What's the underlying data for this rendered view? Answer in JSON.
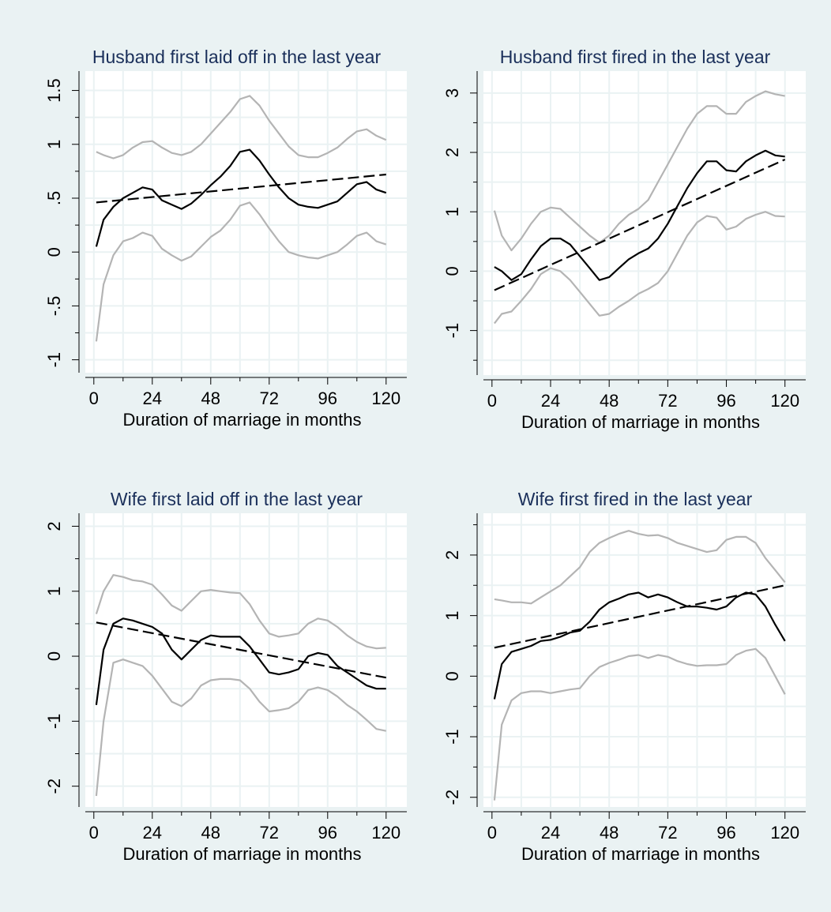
{
  "chart_data": [
    {
      "type": "line",
      "title": "Husband first laid off in the last year",
      "xlabel": "Duration of marriage in months",
      "x": [
        1,
        4,
        8,
        12,
        16,
        20,
        24,
        28,
        32,
        36,
        40,
        44,
        48,
        52,
        56,
        60,
        64,
        68,
        72,
        76,
        80,
        84,
        88,
        92,
        96,
        100,
        104,
        108,
        112,
        116,
        120
      ],
      "xlim": [
        -3.5,
        128.5
      ],
      "xticks": [
        0,
        24,
        48,
        72,
        96,
        120
      ],
      "xminorticks": [
        12,
        36,
        60,
        84,
        108
      ],
      "ylim": [
        -1.12,
        1.68
      ],
      "yticks": [
        -1,
        {
          "value": -0.5,
          "label": "-.5"
        },
        0,
        {
          "value": 0.5,
          "label": ".5"
        },
        1,
        1.5
      ],
      "yminorticks": [
        -0.75,
        -0.25,
        0.25,
        0.75,
        1.25
      ],
      "grid": true,
      "series": [
        {
          "color": "#b4b4b4",
          "values": [
            0.93,
            0.9,
            0.87,
            0.9,
            0.97,
            1.02,
            1.03,
            0.97,
            0.92,
            0.9,
            0.93,
            1.0,
            1.1,
            1.2,
            1.3,
            1.42,
            1.45,
            1.36,
            1.22,
            1.1,
            0.98,
            0.9,
            0.88,
            0.88,
            0.92,
            0.97,
            1.05,
            1.12,
            1.14,
            1.08,
            1.04
          ]
        },
        {
          "color": "#b4b4b4",
          "values": [
            -0.83,
            -0.3,
            -0.03,
            0.1,
            0.13,
            0.18,
            0.15,
            0.03,
            -0.03,
            -0.08,
            -0.04,
            0.05,
            0.14,
            0.2,
            0.3,
            0.43,
            0.46,
            0.35,
            0.22,
            0.1,
            0.0,
            -0.03,
            -0.05,
            -0.06,
            -0.03,
            0.0,
            0.07,
            0.15,
            0.18,
            0.1,
            0.07
          ]
        },
        {
          "color": "#000000",
          "values": [
            0.05,
            0.3,
            0.42,
            0.5,
            0.55,
            0.6,
            0.58,
            0.48,
            0.44,
            0.4,
            0.45,
            0.53,
            0.62,
            0.7,
            0.8,
            0.93,
            0.95,
            0.85,
            0.72,
            0.6,
            0.5,
            0.44,
            0.42,
            0.41,
            0.44,
            0.47,
            0.55,
            0.63,
            0.65,
            0.58,
            0.55
          ]
        },
        {
          "color": "#000000",
          "dash": true,
          "x": [
            1,
            120
          ],
          "values": [
            0.46,
            0.72
          ]
        }
      ]
    },
    {
      "type": "line",
      "title": "Husband first fired in the last year",
      "xlabel": "Duration of marriage in months",
      "x": [
        1,
        4,
        8,
        12,
        16,
        20,
        24,
        28,
        32,
        36,
        40,
        44,
        48,
        52,
        56,
        60,
        64,
        68,
        72,
        76,
        80,
        84,
        88,
        92,
        96,
        100,
        104,
        108,
        112,
        116,
        120
      ],
      "xlim": [
        -3.5,
        128.5
      ],
      "xticks": [
        0,
        24,
        48,
        72,
        96,
        120
      ],
      "xminorticks": [
        12,
        36,
        60,
        84,
        108
      ],
      "ylim": [
        -1.75,
        3.37
      ],
      "yticks": [
        -1,
        0,
        1,
        2,
        3
      ],
      "yminorticks": [
        -1.5,
        -0.5,
        0.5,
        1.5,
        2.5
      ],
      "grid": true,
      "series": [
        {
          "color": "#b4b4b4",
          "values": [
            1.02,
            0.6,
            0.35,
            0.55,
            0.8,
            1.0,
            1.07,
            1.05,
            0.9,
            0.75,
            0.6,
            0.48,
            0.6,
            0.8,
            0.95,
            1.05,
            1.2,
            1.5,
            1.8,
            2.1,
            2.4,
            2.65,
            2.78,
            2.78,
            2.65,
            2.65,
            2.85,
            2.95,
            3.03,
            2.98,
            2.95
          ]
        },
        {
          "color": "#b4b4b4",
          "values": [
            -0.88,
            -0.72,
            -0.68,
            -0.5,
            -0.3,
            -0.05,
            0.05,
            0.0,
            -0.15,
            -0.35,
            -0.55,
            -0.75,
            -0.72,
            -0.6,
            -0.5,
            -0.38,
            -0.3,
            -0.2,
            0.0,
            0.3,
            0.6,
            0.82,
            0.93,
            0.9,
            0.7,
            0.75,
            0.88,
            0.95,
            1.0,
            0.93,
            0.92
          ]
        },
        {
          "color": "#000000",
          "values": [
            0.07,
            0.0,
            -0.15,
            -0.05,
            0.2,
            0.42,
            0.55,
            0.55,
            0.45,
            0.25,
            0.05,
            -0.15,
            -0.1,
            0.05,
            0.2,
            0.3,
            0.38,
            0.55,
            0.8,
            1.1,
            1.4,
            1.65,
            1.85,
            1.85,
            1.7,
            1.68,
            1.85,
            1.95,
            2.03,
            1.95,
            1.93
          ]
        },
        {
          "color": "#000000",
          "dash": true,
          "x": [
            1,
            120
          ],
          "values": [
            -0.32,
            1.88
          ]
        }
      ]
    },
    {
      "type": "line",
      "title": "Wife first laid off in the last year",
      "xlabel": "Duration of marriage in months",
      "x": [
        1,
        4,
        8,
        12,
        16,
        20,
        24,
        28,
        32,
        36,
        40,
        44,
        48,
        52,
        56,
        60,
        64,
        68,
        72,
        76,
        80,
        84,
        88,
        92,
        96,
        100,
        104,
        108,
        112,
        116,
        120
      ],
      "xlim": [
        -3.5,
        128.5
      ],
      "xticks": [
        0,
        24,
        48,
        72,
        96,
        120
      ],
      "xminorticks": [
        12,
        36,
        60,
        84,
        108
      ],
      "ylim": [
        -2.32,
        2.2
      ],
      "yticks": [
        -2,
        -1,
        0,
        1,
        2
      ],
      "yminorticks": [
        -1.5,
        -0.5,
        0.5,
        1.5
      ],
      "grid": true,
      "series": [
        {
          "color": "#b4b4b4",
          "values": [
            0.65,
            1.0,
            1.25,
            1.22,
            1.17,
            1.15,
            1.1,
            0.95,
            0.78,
            0.7,
            0.85,
            1.0,
            1.02,
            1.0,
            0.98,
            0.97,
            0.8,
            0.55,
            0.35,
            0.3,
            0.32,
            0.35,
            0.5,
            0.58,
            0.55,
            0.45,
            0.32,
            0.22,
            0.15,
            0.12,
            0.13
          ]
        },
        {
          "color": "#b4b4b4",
          "values": [
            -2.15,
            -1.0,
            -0.1,
            -0.05,
            -0.1,
            -0.15,
            -0.3,
            -0.5,
            -0.7,
            -0.77,
            -0.65,
            -0.45,
            -0.37,
            -0.35,
            -0.35,
            -0.37,
            -0.5,
            -0.7,
            -0.85,
            -0.83,
            -0.8,
            -0.7,
            -0.52,
            -0.48,
            -0.52,
            -0.62,
            -0.75,
            -0.85,
            -0.98,
            -1.12,
            -1.15
          ]
        },
        {
          "color": "#000000",
          "values": [
            -0.75,
            0.1,
            0.5,
            0.58,
            0.55,
            0.5,
            0.45,
            0.35,
            0.1,
            -0.05,
            0.1,
            0.25,
            0.32,
            0.3,
            0.3,
            0.3,
            0.15,
            -0.05,
            -0.25,
            -0.28,
            -0.25,
            -0.2,
            0.0,
            0.05,
            0.02,
            -0.15,
            -0.25,
            -0.35,
            -0.45,
            -0.5,
            -0.5
          ]
        },
        {
          "color": "#000000",
          "dash": true,
          "x": [
            1,
            120
          ],
          "values": [
            0.52,
            -0.33
          ]
        }
      ]
    },
    {
      "type": "line",
      "title": "Wife first fired in the last year",
      "xlabel": "Duration of marriage in months",
      "x": [
        1,
        4,
        8,
        12,
        16,
        20,
        24,
        28,
        32,
        36,
        40,
        44,
        48,
        52,
        56,
        60,
        64,
        68,
        72,
        76,
        80,
        84,
        88,
        92,
        96,
        100,
        104,
        108,
        112,
        116,
        120
      ],
      "xlim": [
        -3.5,
        128.5
      ],
      "xticks": [
        0,
        24,
        48,
        72,
        96,
        120
      ],
      "xminorticks": [
        12,
        36,
        60,
        84,
        108
      ],
      "ylim": [
        -2.16,
        2.69
      ],
      "yticks": [
        -2,
        -1,
        0,
        1,
        2
      ],
      "yminorticks": [
        -1.5,
        -0.5,
        0.5,
        1.5,
        2.5
      ],
      "grid": true,
      "series": [
        {
          "color": "#b4b4b4",
          "values": [
            1.27,
            1.25,
            1.22,
            1.22,
            1.2,
            1.3,
            1.4,
            1.5,
            1.65,
            1.8,
            2.05,
            2.2,
            2.28,
            2.35,
            2.4,
            2.35,
            2.32,
            2.33,
            2.28,
            2.2,
            2.15,
            2.1,
            2.05,
            2.08,
            2.25,
            2.3,
            2.3,
            2.2,
            1.95,
            1.75,
            1.55
          ]
        },
        {
          "color": "#b4b4b4",
          "values": [
            -2.05,
            -0.8,
            -0.4,
            -0.28,
            -0.25,
            -0.25,
            -0.28,
            -0.25,
            -0.22,
            -0.2,
            0.0,
            0.15,
            0.22,
            0.27,
            0.33,
            0.35,
            0.3,
            0.35,
            0.32,
            0.25,
            0.2,
            0.17,
            0.18,
            0.18,
            0.2,
            0.35,
            0.42,
            0.45,
            0.3,
            0.0,
            -0.3
          ]
        },
        {
          "color": "#000000",
          "values": [
            -0.38,
            0.2,
            0.4,
            0.45,
            0.5,
            0.58,
            0.6,
            0.65,
            0.72,
            0.75,
            0.9,
            1.1,
            1.22,
            1.28,
            1.35,
            1.38,
            1.3,
            1.35,
            1.3,
            1.22,
            1.15,
            1.15,
            1.13,
            1.1,
            1.15,
            1.3,
            1.38,
            1.35,
            1.15,
            0.85,
            0.58
          ]
        },
        {
          "color": "#000000",
          "dash": true,
          "x": [
            1,
            120
          ],
          "values": [
            0.47,
            1.5
          ]
        }
      ]
    }
  ]
}
